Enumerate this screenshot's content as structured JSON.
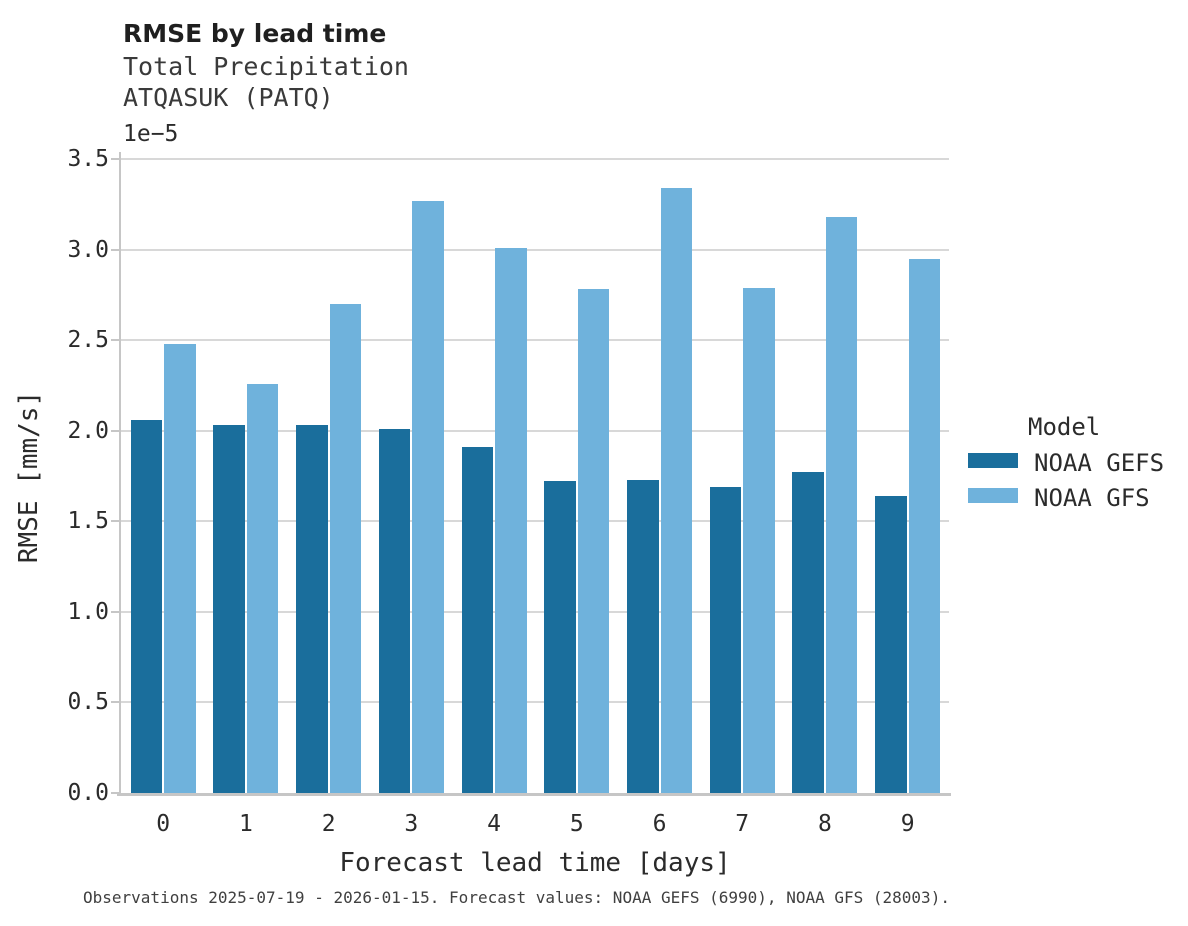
{
  "header": {
    "title": "RMSE by lead time",
    "subtitle1": "Total Precipitation",
    "subtitle2": "ATQASUK (PATQ)"
  },
  "axes": {
    "offset_text": "1e−5",
    "ytick_labels": [
      "0.0",
      "0.5",
      "1.0",
      "1.5",
      "2.0",
      "2.5",
      "3.0",
      "3.5"
    ],
    "xtick_labels": [
      "0",
      "1",
      "2",
      "3",
      "4",
      "5",
      "6",
      "7",
      "8",
      "9"
    ]
  },
  "chart_data": {
    "type": "bar",
    "title": "RMSE by lead time",
    "subtitle": [
      "Total Precipitation",
      "ATQASUK (PATQ)"
    ],
    "xlabel": "Forecast lead time [days]",
    "ylabel": "RMSE [mm/s]",
    "value_unit_multiplier": "1e-5",
    "categories": [
      0,
      1,
      2,
      3,
      4,
      5,
      6,
      7,
      8,
      9
    ],
    "series": [
      {
        "name": "NOAA GEFS",
        "color": "#1a6e9c",
        "values": [
          2.06,
          2.03,
          2.03,
          2.01,
          1.91,
          1.72,
          1.73,
          1.69,
          1.77,
          1.64
        ]
      },
      {
        "name": "NOAA GFS",
        "color": "#6fb2dc",
        "values": [
          2.48,
          2.26,
          2.7,
          3.27,
          3.01,
          2.78,
          3.34,
          2.79,
          3.18,
          2.95
        ]
      }
    ],
    "ylim": [
      0,
      3.5
    ],
    "ytick_step": 0.5,
    "grid": true,
    "legend_title": "Model",
    "legend_position": "right"
  },
  "legend": {
    "title": "Model",
    "entries": [
      {
        "label": "NOAA GEFS",
        "color": "#1a6e9c"
      },
      {
        "label": "NOAA GFS",
        "color": "#6fb2dc"
      }
    ]
  },
  "footer": {
    "note": "Observations 2025-07-19 - 2026-01-15. Forecast values: NOAA GEFS (6990), NOAA GFS (28003)."
  },
  "colors": {
    "grid": "#d8d8d8",
    "spine": "#c6c6c6",
    "series_dark": "#1a6e9c",
    "series_light": "#6fb2dc"
  }
}
